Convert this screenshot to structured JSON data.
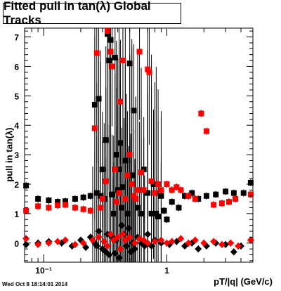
{
  "chart_data": {
    "type": "scatter",
    "title": "Fitted pull in tan(λ)  Global Tracks",
    "ylabel": "pull in tan(λ)",
    "xlabel": "pT/|q| (GeV/c)",
    "x_scale": "log",
    "xlim": [
      0.07,
      5.0
    ],
    "ylim": [
      -0.65,
      7.3
    ],
    "y_ticks": [
      0,
      1,
      2,
      3,
      4,
      5,
      6,
      7
    ],
    "x_tick_labels": [
      {
        "value": 0.1,
        "label": "10⁻¹"
      },
      {
        "value": 1,
        "label": "1"
      }
    ],
    "series": [
      {
        "marker": "square",
        "color": "#000000",
        "points": [
          [
            0.072,
            1.95
          ],
          [
            0.09,
            1.5
          ],
          [
            0.11,
            1.45
          ],
          [
            0.13,
            1.4
          ],
          [
            0.15,
            1.42
          ],
          [
            0.18,
            1.5
          ],
          [
            0.21,
            1.55
          ],
          [
            0.24,
            1.6
          ],
          [
            0.26,
            4.7
          ],
          [
            0.27,
            1.7
          ],
          [
            0.28,
            4.9
          ],
          [
            0.29,
            1.6
          ],
          [
            0.3,
            2.5
          ],
          [
            0.31,
            1.5
          ],
          [
            0.32,
            3.5
          ],
          [
            0.33,
            7.1
          ],
          [
            0.34,
            6.2
          ],
          [
            0.35,
            6.9
          ],
          [
            0.36,
            1.65
          ],
          [
            0.37,
            1.0
          ],
          [
            0.38,
            6.3
          ],
          [
            0.39,
            3.0
          ],
          [
            0.4,
            1.8
          ],
          [
            0.41,
            2.5
          ],
          [
            0.42,
            3.4
          ],
          [
            0.43,
            1.2
          ],
          [
            0.44,
            1.9
          ],
          [
            0.46,
            2.8
          ],
          [
            0.48,
            1.0
          ],
          [
            0.5,
            6.1
          ],
          [
            0.52,
            2.3
          ],
          [
            0.54,
            4.5
          ],
          [
            0.56,
            1.5
          ],
          [
            0.58,
            1.2
          ],
          [
            0.6,
            1.8
          ],
          [
            0.62,
            1.0
          ],
          [
            0.65,
            2.5
          ],
          [
            0.7,
            1.7
          ],
          [
            0.75,
            1.0
          ],
          [
            0.78,
            2.0
          ],
          [
            0.82,
            1.0
          ],
          [
            0.85,
            0.9
          ],
          [
            0.9,
            1.6
          ],
          [
            0.95,
            1.1
          ],
          [
            1.0,
            0.8
          ],
          [
            1.1,
            1.4
          ],
          [
            1.25,
            1.2
          ],
          [
            1.4,
            1.6
          ],
          [
            1.6,
            1.7
          ],
          [
            1.8,
            1.5
          ],
          [
            2.1,
            1.6
          ],
          [
            2.5,
            1.65
          ],
          [
            3.0,
            1.75
          ],
          [
            3.5,
            1.7
          ],
          [
            4.2,
            1.7
          ],
          [
            4.8,
            2.05
          ]
        ]
      },
      {
        "marker": "square",
        "color": "#ff0000",
        "points": [
          [
            0.072,
            1.1
          ],
          [
            0.09,
            1.25
          ],
          [
            0.11,
            1.2
          ],
          [
            0.13,
            1.28
          ],
          [
            0.15,
            1.3
          ],
          [
            0.18,
            1.2
          ],
          [
            0.21,
            1.15
          ],
          [
            0.24,
            1.1
          ],
          [
            0.26,
            3.9
          ],
          [
            0.27,
            6.45
          ],
          [
            0.29,
            1.2
          ],
          [
            0.3,
            1.5
          ],
          [
            0.32,
            2.1
          ],
          [
            0.33,
            7.2
          ],
          [
            0.35,
            6.5
          ],
          [
            0.36,
            6.0
          ],
          [
            0.38,
            2.5
          ],
          [
            0.39,
            1.4
          ],
          [
            0.41,
            1.7
          ],
          [
            0.42,
            4.8
          ],
          [
            0.44,
            6.2
          ],
          [
            0.46,
            1.5
          ],
          [
            0.48,
            2.3
          ],
          [
            0.5,
            3.0
          ],
          [
            0.52,
            2.0
          ],
          [
            0.54,
            1.6
          ],
          [
            0.56,
            1.5
          ],
          [
            0.58,
            1.8
          ],
          [
            0.6,
            6.5
          ],
          [
            0.62,
            2.4
          ],
          [
            0.65,
            1.8
          ],
          [
            0.7,
            5.9
          ],
          [
            0.72,
            5.8
          ],
          [
            0.75,
            2.1
          ],
          [
            0.8,
            1.7
          ],
          [
            0.85,
            2.0
          ],
          [
            0.9,
            1.8
          ],
          [
            1.0,
            2.0
          ],
          [
            1.1,
            1.8
          ],
          [
            1.2,
            1.9
          ],
          [
            1.3,
            1.8
          ],
          [
            1.5,
            1.6
          ],
          [
            1.7,
            1.5
          ],
          [
            1.9,
            4.4
          ],
          [
            2.1,
            3.8
          ],
          [
            2.4,
            1.3
          ],
          [
            2.8,
            1.35
          ],
          [
            3.2,
            1.4
          ],
          [
            3.6,
            1.5
          ],
          [
            4.8,
            1.65
          ]
        ]
      },
      {
        "marker": "diamond",
        "color": "#000000",
        "points": [
          [
            0.072,
            -0.05
          ],
          [
            0.09,
            0.0
          ],
          [
            0.11,
            0.05
          ],
          [
            0.14,
            0.0
          ],
          [
            0.17,
            -0.1
          ],
          [
            0.2,
            0.1
          ],
          [
            0.22,
            -0.15
          ],
          [
            0.24,
            0.2
          ],
          [
            0.26,
            0.0
          ],
          [
            0.27,
            -0.1
          ],
          [
            0.28,
            0.4
          ],
          [
            0.3,
            -0.2
          ],
          [
            0.32,
            -0.3
          ],
          [
            0.33,
            0.3
          ],
          [
            0.34,
            -0.4
          ],
          [
            0.36,
            0.2
          ],
          [
            0.38,
            -0.35
          ],
          [
            0.39,
            0.1
          ],
          [
            0.41,
            -0.5
          ],
          [
            0.43,
            0.6
          ],
          [
            0.45,
            0.3
          ],
          [
            0.47,
            -0.1
          ],
          [
            0.49,
            0.5
          ],
          [
            0.51,
            -0.3
          ],
          [
            0.53,
            0.0
          ],
          [
            0.55,
            -0.2
          ],
          [
            0.58,
            0.2
          ],
          [
            0.62,
            0.0
          ],
          [
            0.66,
            -0.1
          ],
          [
            0.7,
            0.3
          ],
          [
            0.75,
            -0.1
          ],
          [
            0.8,
            0.1
          ],
          [
            0.9,
            0.0
          ],
          [
            1.05,
            -0.05
          ],
          [
            1.2,
            0.05
          ],
          [
            1.4,
            -0.1
          ],
          [
            1.6,
            0.0
          ],
          [
            1.8,
            -0.2
          ],
          [
            2.1,
            -0.1
          ],
          [
            2.5,
            0.0
          ],
          [
            3.0,
            -0.05
          ],
          [
            3.5,
            -0.3
          ],
          [
            4.0,
            -0.1
          ],
          [
            4.8,
            0.1
          ]
        ]
      },
      {
        "marker": "diamond",
        "color": "#ff0000",
        "points": [
          [
            0.072,
            0.15
          ],
          [
            0.09,
            -0.05
          ],
          [
            0.11,
            0.0
          ],
          [
            0.13,
            0.05
          ],
          [
            0.15,
            0.1
          ],
          [
            0.18,
            -0.05
          ],
          [
            0.21,
            0.0
          ],
          [
            0.25,
            0.1
          ],
          [
            0.28,
            0.2
          ],
          [
            0.31,
            0.05
          ],
          [
            0.33,
            -0.1
          ],
          [
            0.35,
            0.3
          ],
          [
            0.37,
            0.1
          ],
          [
            0.4,
            0.2
          ],
          [
            0.42,
            -0.2
          ],
          [
            0.44,
            0.3
          ],
          [
            0.46,
            0.1
          ],
          [
            0.5,
            0.2
          ],
          [
            0.55,
            0.0
          ],
          [
            0.6,
            0.15
          ],
          [
            0.65,
            0.1
          ],
          [
            0.7,
            0.0
          ],
          [
            0.8,
            0.05
          ],
          [
            0.9,
            0.1
          ],
          [
            1.0,
            0.0
          ],
          [
            1.1,
            0.05
          ],
          [
            1.3,
            0.15
          ],
          [
            1.5,
            0.0
          ],
          [
            1.7,
            0.1
          ],
          [
            2.0,
            0.0
          ],
          [
            2.4,
            0.05
          ],
          [
            2.8,
            -0.05
          ],
          [
            3.3,
            0.0
          ],
          [
            3.8,
            -0.1
          ],
          [
            4.8,
            0.1
          ]
        ]
      }
    ]
  },
  "footer": {
    "timestamp": "Wed Oct  8 18:14:01 2014"
  }
}
